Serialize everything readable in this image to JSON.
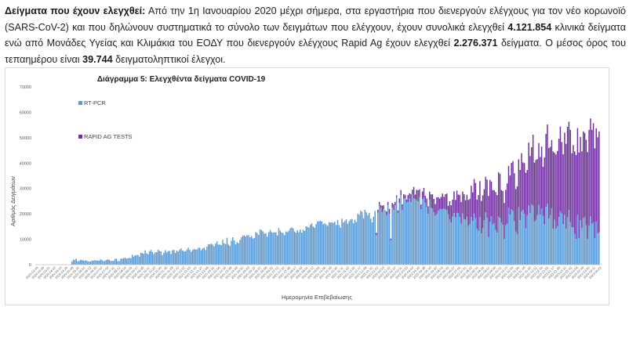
{
  "paragraph": {
    "lead": "Δείγματα που έχουν ελεγχθεί:",
    "part1": " Από την 1η Ιανουαρίου 2020 μέχρι σήμερα, στα εργαστήρια που διενεργούν ελέγχους για τον νέο κορωνοϊό (SARS-CoV-2) και που δηλώνουν συστηματικά το σύνολο των δειγμάτων που ελέγχουν, έχουν συνολικά ελεγχθεί ",
    "clinical_total": "4.121.854",
    "part2": " κλινικά δείγματα ενώ από Μονάδες Υγείας και Κλιμάκια του ΕΟΔΥ που διενεργούν ελέγχους Rapid Ag έχουν ελεγχθεί ",
    "rapid_total": "2.276.371",
    "part3": " δείγματα. Ο μέσος όρος του τεπαημέρου είναι ",
    "average": "39.744",
    "part4": " δειγματοληπτικοί έλεγχοι."
  },
  "chart_data": {
    "type": "bar",
    "stacked": true,
    "title": "Διάγραμμα 5: Ελεγχθέντα δείγματα COVID-19",
    "xlabel": "Ημερομηνία Επιβεβαίωσης",
    "ylabel": "Αριθμός Δειγμάτων",
    "ylim": [
      0,
      70000
    ],
    "yticks": [
      "0",
      "10000",
      "20000",
      "30000",
      "40000",
      "50000",
      "60000",
      "70000"
    ],
    "grid": false,
    "legend_position": "top-left",
    "series": [
      {
        "name": "RT-PCR",
        "color": "#5b9bd5",
        "values": [
          0,
          0,
          0,
          0,
          0,
          0,
          0,
          0,
          0,
          0,
          0,
          0,
          0,
          0,
          0,
          0,
          0,
          0,
          0,
          0,
          0,
          0,
          0,
          0,
          1200,
          2000,
          1800,
          2400,
          1300,
          1500,
          1900,
          1900,
          1600,
          1600,
          1700,
          1400,
          1300,
          1200,
          1600,
          1600,
          1800,
          1600,
          1600,
          1600,
          2100,
          1800,
          1400,
          1500,
          1900,
          2100,
          1900,
          1500,
          1500,
          1500,
          2300,
          2400,
          1400,
          1400,
          2300,
          2500,
          2500,
          2700,
          2400,
          2500,
          2700,
          2500,
          3900,
          3200,
          3700,
          3800,
          3800,
          3200,
          4700,
          4600,
          4300,
          5600,
          4500,
          4100,
          5300,
          5800,
          5000,
          4200,
          4900,
          4900,
          5900,
          5400,
          5200,
          3800,
          4700,
          5700,
          4800,
          5300,
          5400,
          4200,
          5700,
          5800,
          4600,
          5600,
          5200,
          5900,
          6400,
          5600,
          5300,
          5200,
          5900,
          6700,
          5900,
          5100,
          5800,
          6200,
          6000,
          6000,
          6700,
          6600,
          5700,
          6400,
          6700,
          5800,
          7100,
          8100,
          8000,
          8300,
          7900,
          7200,
          8300,
          9200,
          7900,
          7900,
          7700,
          9800,
          8400,
          8100,
          10600,
          7900,
          7400,
          9400,
          10800,
          9600,
          8000,
          8900,
          8500,
          9800,
          10800,
          11400,
          11600,
          11100,
          11700,
          11600,
          10800,
          11300,
          10300,
          10500,
          12800,
          12400,
          11700,
          13900,
          13600,
          13100,
          12200,
          12400,
          11000,
          12800,
          13700,
          12800,
          12600,
          12800,
          12700,
          11500,
          14400,
          13400,
          12700,
          12500,
          11600,
          13100,
          12800,
          13400,
          14300,
          14700,
          14300,
          13100,
          12600,
          13600,
          12800,
          13900,
          12600,
          13800,
          13300,
          15100,
          14900,
          14600,
          15700,
          16300,
          15000,
          14600,
          16000,
          17100,
          17100,
          17300,
          17000,
          15900,
          16300,
          15800,
          15300,
          16700,
          16600,
          16700,
          16500,
          16900,
          15600,
          17600,
          15600,
          14600,
          18100,
          16600,
          17200,
          17900,
          16100,
          17100,
          17800,
          18000,
          16300,
          17700,
          16800,
          20000,
          19700,
          21300,
          20800,
          18300,
          21600,
          20600,
          19500,
          20400,
          18100,
          16600,
          18900,
          21200,
          11600,
          20500,
          23600,
          22400,
          20700,
          21800,
          21500,
          19500,
          23400,
          20000,
          9600,
          22500,
          21600,
          23400,
          26600,
          20300,
          24300,
          27400,
          21600,
          25900,
          26100,
          24600,
          24600,
          26000,
          24600,
          27700,
          26100,
          25900,
          25400,
          24900,
          26600,
          21800,
          25900,
          26300,
          24400,
          22700,
          20000,
          25600,
          22500,
          22200,
          20600,
          19300,
          20000,
          21300,
          22000,
          21900,
          21900,
          22100,
          21800,
          21500,
          19800,
          17800,
          16600,
          18900,
          20300,
          18700,
          20400,
          20400,
          18800,
          16200,
          20200,
          17900,
          17800,
          18900,
          15200,
          16000,
          18800,
          17200,
          20100,
          18400,
          14200,
          13400,
          18800,
          12300,
          14500,
          17500,
          20600,
          18500,
          10900,
          16800,
          19100,
          15800,
          16400,
          13700,
          12600,
          18900,
          18500,
          16700,
          15700,
          10100,
          15500,
          16100,
          22500,
          19700,
          21800,
          21100,
          17200,
          13100,
          12200,
          22600,
          17500,
          20900,
          21600,
          20000,
          14300,
          19500,
          23300,
          20400,
          23700,
          23300,
          16900,
          17600,
          19600,
          23600,
          19700,
          22200,
          19100,
          16000,
          22800,
          24000,
          18200,
          19500,
          22200,
          14200,
          17700,
          14100,
          15200,
          18800,
          21000,
          20100,
          16000,
          19600,
          14200,
          18800,
          21600,
          16800,
          14700,
          14800,
          12200,
          10100,
          19700,
          10400,
          17500,
          14400,
          18300,
          18900,
          15500,
          10200,
          15300,
          19000,
          16200,
          16700,
          10400,
          16900,
          12300,
          12700
        ]
      },
      {
        "name": "RAPID AG TESTS",
        "color": "#7030a0",
        "values": [
          0,
          0,
          0,
          0,
          0,
          0,
          0,
          0,
          0,
          0,
          0,
          0,
          0,
          0,
          0,
          0,
          0,
          0,
          0,
          0,
          0,
          0,
          0,
          0,
          0,
          0,
          0,
          0,
          0,
          0,
          0,
          0,
          0,
          0,
          0,
          0,
          0,
          0,
          0,
          0,
          0,
          0,
          0,
          0,
          0,
          0,
          0,
          0,
          0,
          0,
          0,
          0,
          0,
          0,
          0,
          0,
          0,
          0,
          0,
          0,
          0,
          0,
          0,
          0,
          0,
          0,
          0,
          0,
          0,
          0,
          0,
          0,
          0,
          0,
          0,
          0,
          0,
          0,
          0,
          0,
          0,
          0,
          0,
          0,
          0,
          0,
          0,
          0,
          0,
          0,
          0,
          0,
          0,
          0,
          0,
          0,
          0,
          0,
          0,
          0,
          0,
          0,
          0,
          0,
          0,
          0,
          0,
          0,
          0,
          0,
          0,
          0,
          0,
          0,
          0,
          0,
          0,
          0,
          0,
          0,
          0,
          0,
          0,
          0,
          0,
          0,
          0,
          0,
          0,
          0,
          0,
          0,
          0,
          0,
          0,
          0,
          0,
          0,
          0,
          0,
          0,
          0,
          0,
          0,
          0,
          0,
          0,
          0,
          0,
          0,
          0,
          0,
          0,
          0,
          0,
          0,
          0,
          0,
          0,
          0,
          0,
          0,
          0,
          0,
          0,
          0,
          0,
          0,
          0,
          0,
          0,
          0,
          0,
          0,
          0,
          0,
          0,
          0,
          0,
          0,
          0,
          0,
          0,
          0,
          0,
          0,
          0,
          0,
          0,
          0,
          0,
          0,
          0,
          0,
          0,
          0,
          0,
          0,
          0,
          0,
          0,
          0,
          0,
          0,
          0,
          0,
          0,
          0,
          0,
          0,
          0,
          0,
          0,
          0,
          0,
          0,
          0,
          0,
          0,
          0,
          0,
          0,
          0,
          0,
          0,
          0,
          0,
          0,
          0,
          0,
          0,
          0,
          0,
          0,
          0,
          0,
          1000,
          1100,
          1100,
          1100,
          2500,
          1600,
          0,
          1500,
          1300,
          2000,
          700,
          1800,
          2200,
          1300,
          700,
          1100,
          1800,
          2000,
          2200,
          1900,
          1400,
          1100,
          2800,
          2100,
          3200,
          1800,
          4500,
          1700,
          4100,
          4400,
          3100,
          1900,
          2900,
          3900,
          2700,
          3400,
          3000,
          3200,
          5200,
          5500,
          5300,
          4600,
          6500,
          5300,
          4000,
          4800,
          6100,
          4600,
          5900,
          6500,
          3400,
          7200,
          6800,
          6700,
          8600,
          6800,
          8800,
          7200,
          8700,
          8500,
          8600,
          9900,
          7600,
          8600,
          10300,
          9900,
          12300,
          11300,
          13600,
          13800,
          11400,
          14000,
          14100,
          12800,
          12800,
          12200,
          14000,
          15000,
          16200,
          16600,
          13600,
          13600,
          12900,
          14900,
          14800,
          17500,
          17300,
          12700,
          13300,
          14200,
          14000,
          15900,
          16400,
          15400,
          18300,
          19700,
          18800,
          16700,
          18700,
          18900,
          19800,
          23000,
          18700,
          20000,
          21900,
          17800,
          24800,
          22400,
          22600,
          27900,
          23300,
          23700,
          22000,
          24300,
          22700,
          24300,
          19500,
          26300,
          28700,
          31200,
          27700,
          26900,
          26900,
          30400,
          26400,
          29300,
          29600,
          30800,
          33400,
          28200,
          27500,
          32400,
          33400,
          35500,
          34700,
          36300,
          29200,
          32300,
          32400,
          33100,
          34100,
          33800,
          32800,
          30200,
          34200,
          33000,
          33700,
          34100,
          37800,
          38600,
          36900,
          39000,
          35400,
          36800,
          37900,
          39800,
          39300,
          44600,
          44100,
          38600,
          40900,
          42700,
          41400,
          38300,
          44700,
          43100,
          44600,
          41700,
          43900,
          43100,
          42500,
          43300,
          44400,
          43000,
          43400,
          45000,
          42900,
          42200,
          45900,
          43400,
          44100,
          47200,
          45000,
          45900
        ]
      }
    ],
    "x_tick_labels": [
      "2020-02-26",
      "2020-03-09",
      "2020-03-21",
      "2020-04-02",
      "2020-04-14",
      "2020-04-26",
      "2020-05-08",
      "2020-05-20",
      "2020-06-01",
      "2020-06-13",
      "2020-06-25",
      "2020-07-07",
      "2020-07-19",
      "2020-07-31",
      "2020-08-12",
      "2020-08-24",
      "2020-09-05",
      "2020-09-17",
      "2020-09-29",
      "2020-10-11",
      "2020-10-23",
      "2020-11-04",
      "2020-11-16",
      "2020-11-28",
      "2020-12-10",
      "2020-12-22",
      "2021-01-03",
      "2021-01-15",
      "2021-01-27",
      "2021-02-08",
      "2021-02-20",
      "2021-03-04",
      "2021-03-16",
      "2021-03-28",
      "2021-04-09",
      "2021-04-21",
      "2021-05-03",
      "2021-05-15",
      "2021-05-27",
      "2021-06-08",
      "2021-06-20",
      "2021-07-02",
      "2021-07-14",
      "2021-07-26",
      "2021-08-07",
      "2021-08-19",
      "2021-08-31",
      "2021-09-12",
      "2021-09-24",
      "2021-10-06",
      "2021-10-18",
      "2021-10-30",
      "2021-11-11",
      "2021-11-23",
      "2021-12-05",
      "2021-12-17",
      "2021-12-29",
      "2022-01-10",
      "2022-01-22",
      "2022-02-03",
      "2022-02-15",
      "2022-02-27",
      "2022-03-11",
      "2022-03-23",
      "2022-04-04",
      "2022-04-16",
      "2022-04-28",
      "2022-05-10",
      "2022-05-22",
      "2022-06-03",
      "2022-06-15",
      "2022-06-27",
      "2022-07-09",
      "2022-07-21",
      "2022-08-02",
      "2022-08-14",
      "2022-08-26",
      "2022-09-07",
      "2022-09-19",
      "2022-10-01",
      "2022-10-13",
      "2022-10-25",
      "2022-11-06",
      "2022-11-18",
      "2022-11-30",
      "2022-12-12",
      "2022-12-24",
      "2023-01-05",
      "2023-01-17",
      "2023-01-29",
      "2023-02-10",
      "2023-02-22",
      "2023-03-06",
      "2023-03-18",
      "2023-03-30",
      "2023-04-11",
      "2023-04-23"
    ]
  }
}
